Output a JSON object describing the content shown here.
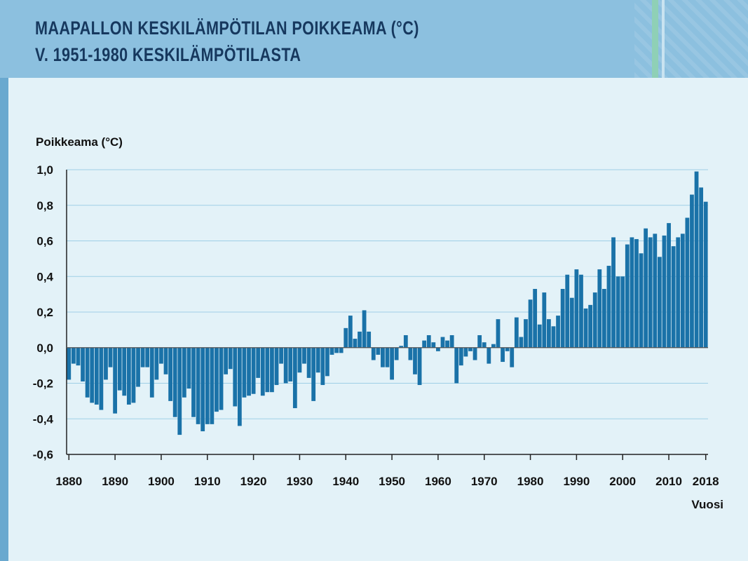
{
  "header": {
    "title_line1": "MAAPALLON KESKILÄMPÖTILAN POIKKEAMA (°C)",
    "title_line2": "V. 1951-1980 KESKILÄMPÖTILASTA"
  },
  "colors": {
    "header_bg": "#8cc0df",
    "background": "#e3f2f8",
    "bar": "#1a72a8",
    "title_text": "#16385e"
  },
  "chart_data": {
    "type": "bar",
    "title": "MAAPALLON KESKILÄMPÖTILAN POIKKEAMA (°C) V. 1951-1980 KESKILÄMPÖTILASTA",
    "ylabel": "Poikkeama (°C)",
    "xlabel": "Vuosi",
    "ylim": [
      -0.6,
      1.0
    ],
    "y_ticks": [
      "1,0",
      "0,8",
      "0,6",
      "0,4",
      "0,2",
      "0,0",
      "-0,2",
      "-0,4",
      "-0,6"
    ],
    "y_tick_values": [
      1.0,
      0.8,
      0.6,
      0.4,
      0.2,
      0.0,
      -0.2,
      -0.4,
      -0.6
    ],
    "x_ticks": [
      "1880",
      "1890",
      "1900",
      "1910",
      "1920",
      "1930",
      "1940",
      "1950",
      "1960",
      "1970",
      "1980",
      "1990",
      "2000",
      "2010",
      "2018"
    ],
    "x_tick_years": [
      1880,
      1890,
      1900,
      1910,
      1920,
      1930,
      1940,
      1950,
      1960,
      1970,
      1980,
      1990,
      2000,
      2010,
      2018
    ],
    "grid": true,
    "x_start": 1880,
    "values": [
      -0.18,
      -0.09,
      -0.1,
      -0.19,
      -0.28,
      -0.31,
      -0.32,
      -0.35,
      -0.18,
      -0.11,
      -0.37,
      -0.24,
      -0.27,
      -0.32,
      -0.31,
      -0.22,
      -0.11,
      -0.11,
      -0.28,
      -0.18,
      -0.09,
      -0.15,
      -0.3,
      -0.39,
      -0.49,
      -0.28,
      -0.23,
      -0.39,
      -0.43,
      -0.47,
      -0.43,
      -0.43,
      -0.36,
      -0.35,
      -0.15,
      -0.12,
      -0.33,
      -0.44,
      -0.28,
      -0.27,
      -0.26,
      -0.17,
      -0.27,
      -0.25,
      -0.25,
      -0.21,
      -0.09,
      -0.2,
      -0.19,
      -0.34,
      -0.14,
      -0.09,
      -0.17,
      -0.3,
      -0.14,
      -0.21,
      -0.16,
      -0.04,
      -0.03,
      -0.03,
      0.11,
      0.18,
      0.05,
      0.09,
      0.21,
      0.09,
      -0.07,
      -0.04,
      -0.11,
      -0.11,
      -0.18,
      -0.07,
      0.01,
      0.07,
      -0.07,
      -0.15,
      -0.21,
      0.04,
      0.07,
      0.03,
      -0.02,
      0.06,
      0.04,
      0.07,
      -0.2,
      -0.1,
      -0.05,
      -0.02,
      -0.07,
      0.07,
      0.03,
      -0.09,
      0.02,
      0.16,
      -0.08,
      -0.02,
      -0.11,
      0.17,
      0.06,
      0.16,
      0.27,
      0.33,
      0.13,
      0.31,
      0.16,
      0.12,
      0.18,
      0.33,
      0.41,
      0.28,
      0.44,
      0.41,
      0.22,
      0.24,
      0.31,
      0.44,
      0.33,
      0.46,
      0.62,
      0.4,
      0.4,
      0.58,
      0.62,
      0.61,
      0.53,
      0.67,
      0.62,
      0.64,
      0.51,
      0.63,
      0.7,
      0.57,
      0.62,
      0.64,
      0.73,
      0.86,
      0.99,
      0.9,
      0.82
    ]
  }
}
